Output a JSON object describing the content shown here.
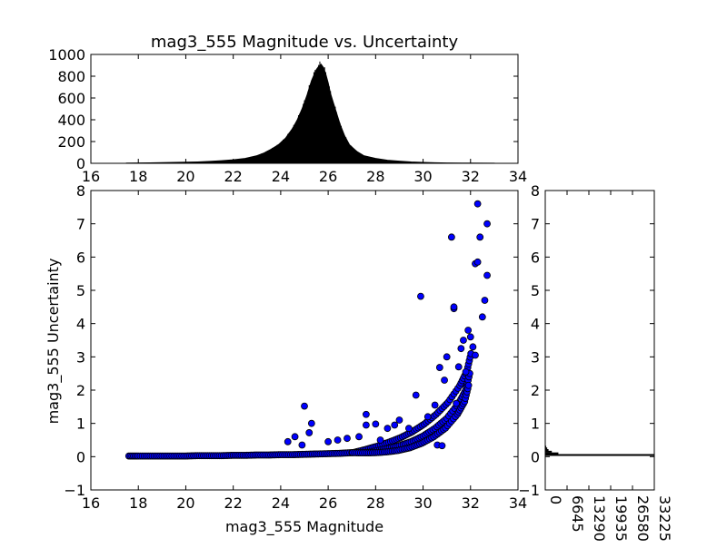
{
  "chart_data": [
    {
      "panel": "top-histogram",
      "type": "bar",
      "title": "mag3_555 Magnitude vs. Uncertainty",
      "xlim": [
        16,
        34
      ],
      "ylim": [
        0,
        1000
      ],
      "xticks": [
        "16",
        "18",
        "20",
        "22",
        "24",
        "26",
        "28",
        "30",
        "32",
        "34"
      ],
      "yticks": [
        "0",
        "200",
        "400",
        "600",
        "800",
        "1000"
      ],
      "bar_color": "#000000",
      "bins": [
        [
          17.5,
          2
        ],
        [
          18.0,
          3
        ],
        [
          18.5,
          4
        ],
        [
          19.0,
          6
        ],
        [
          19.5,
          8
        ],
        [
          20.0,
          10
        ],
        [
          20.5,
          13
        ],
        [
          21.0,
          18
        ],
        [
          21.5,
          24
        ],
        [
          22.0,
          32
        ],
        [
          22.5,
          45
        ],
        [
          23.0,
          70
        ],
        [
          23.3,
          95
        ],
        [
          23.6,
          130
        ],
        [
          23.9,
          170
        ],
        [
          24.2,
          230
        ],
        [
          24.5,
          320
        ],
        [
          24.7,
          400
        ],
        [
          24.9,
          500
        ],
        [
          25.1,
          620
        ],
        [
          25.3,
          760
        ],
        [
          25.5,
          860
        ],
        [
          25.6,
          890
        ],
        [
          25.7,
          910
        ],
        [
          25.8,
          880
        ],
        [
          25.9,
          820
        ],
        [
          26.0,
          740
        ],
        [
          26.1,
          640
        ],
        [
          26.3,
          500
        ],
        [
          26.5,
          360
        ],
        [
          26.7,
          250
        ],
        [
          26.9,
          170
        ],
        [
          27.2,
          110
        ],
        [
          27.5,
          70
        ],
        [
          28.0,
          45
        ],
        [
          28.5,
          28
        ],
        [
          29.0,
          20
        ],
        [
          29.5,
          12
        ],
        [
          30.0,
          8
        ],
        [
          30.5,
          5
        ],
        [
          31.0,
          3
        ],
        [
          32.0,
          2
        ],
        [
          33.0,
          1
        ]
      ]
    },
    {
      "panel": "main-scatter",
      "type": "scatter",
      "xlabel": "mag3_555 Magnitude",
      "ylabel": "mag3_555 Uncertainty",
      "xlim": [
        16,
        34
      ],
      "ylim": [
        -1,
        8
      ],
      "xticks": [
        "16",
        "18",
        "20",
        "22",
        "24",
        "26",
        "28",
        "30",
        "32",
        "34"
      ],
      "yticks": [
        "−1",
        "0",
        "1",
        "2",
        "3",
        "4",
        "5",
        "6",
        "7",
        "8"
      ],
      "marker_color": "#0000ff",
      "baseline": [
        [
          17.6,
          0.02
        ],
        [
          18.0,
          0.02
        ],
        [
          18.5,
          0.02
        ],
        [
          19.0,
          0.02
        ],
        [
          19.5,
          0.02
        ],
        [
          20.0,
          0.02
        ],
        [
          20.5,
          0.03
        ],
        [
          21.0,
          0.03
        ],
        [
          21.5,
          0.03
        ],
        [
          22.0,
          0.04
        ],
        [
          22.5,
          0.04
        ],
        [
          23.0,
          0.05
        ],
        [
          23.5,
          0.05
        ],
        [
          24.0,
          0.06
        ],
        [
          24.5,
          0.06
        ],
        [
          25.0,
          0.07
        ],
        [
          25.5,
          0.08
        ],
        [
          26.0,
          0.09
        ],
        [
          26.5,
          0.1
        ],
        [
          27.0,
          0.12
        ],
        [
          27.5,
          0.15
        ],
        [
          28.0,
          0.19
        ],
        [
          28.5,
          0.25
        ],
        [
          29.0,
          0.33
        ],
        [
          29.5,
          0.45
        ],
        [
          30.0,
          0.62
        ],
        [
          30.5,
          0.85
        ],
        [
          31.0,
          1.15
        ],
        [
          31.5,
          1.6
        ],
        [
          31.8,
          2.0
        ],
        [
          32.0,
          2.6
        ]
      ],
      "outliers": [
        [
          24.3,
          0.45
        ],
        [
          24.6,
          0.6
        ],
        [
          24.9,
          0.35
        ],
        [
          25.0,
          1.52
        ],
        [
          25.3,
          1.0
        ],
        [
          25.2,
          0.72
        ],
        [
          26.0,
          0.45
        ],
        [
          26.4,
          0.5
        ],
        [
          26.8,
          0.55
        ],
        [
          27.3,
          0.6
        ],
        [
          27.6,
          1.27
        ],
        [
          27.6,
          0.95
        ],
        [
          28.0,
          0.98
        ],
        [
          28.2,
          0.5
        ],
        [
          28.5,
          0.85
        ],
        [
          28.8,
          0.95
        ],
        [
          29.0,
          1.1
        ],
        [
          29.4,
          0.85
        ],
        [
          29.7,
          1.85
        ],
        [
          29.9,
          4.82
        ],
        [
          30.2,
          1.2
        ],
        [
          30.5,
          1.55
        ],
        [
          30.7,
          2.68
        ],
        [
          30.9,
          2.3
        ],
        [
          31.0,
          3.0
        ],
        [
          31.2,
          6.6
        ],
        [
          31.3,
          4.45
        ],
        [
          31.3,
          4.5
        ],
        [
          31.4,
          1.6
        ],
        [
          31.5,
          2.7
        ],
        [
          31.6,
          3.25
        ],
        [
          31.7,
          3.5
        ],
        [
          31.8,
          2.55
        ],
        [
          31.9,
          3.8
        ],
        [
          32.0,
          3.6
        ],
        [
          32.1,
          3.3
        ],
        [
          32.2,
          5.8
        ],
        [
          32.3,
          5.85
        ],
        [
          32.2,
          3.05
        ],
        [
          32.3,
          7.6
        ],
        [
          32.4,
          6.6
        ],
        [
          32.5,
          4.2
        ],
        [
          32.6,
          4.7
        ],
        [
          32.7,
          5.45
        ],
        [
          32.7,
          7.0
        ],
        [
          30.6,
          0.35
        ],
        [
          30.8,
          0.33
        ]
      ]
    },
    {
      "panel": "right-histogram",
      "type": "bar",
      "xlim": [
        0,
        33225
      ],
      "ylim": [
        -1,
        8
      ],
      "xticks": [
        "0",
        "6645",
        "13290",
        "19935",
        "26580",
        "33225"
      ],
      "yticks": [
        "−1",
        "0",
        "1",
        "2",
        "3",
        "4",
        "5",
        "6",
        "7",
        "8"
      ],
      "bar_color": "#000000",
      "profile": [
        [
          0.05,
          33225
        ],
        [
          0.1,
          4000
        ],
        [
          0.15,
          2000
        ],
        [
          0.2,
          1000
        ],
        [
          0.25,
          600
        ],
        [
          0.3,
          300
        ],
        [
          0.5,
          120
        ],
        [
          1.0,
          40
        ]
      ]
    }
  ]
}
